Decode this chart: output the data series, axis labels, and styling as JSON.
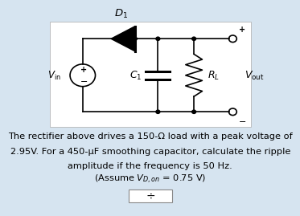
{
  "bg_color": "#d6e4f0",
  "box_bg": "#ffffff",
  "text_line1": "The rectifier above drives a 150-Ω load with a peak voltage of",
  "text_line2": "2.95V. For a 450-μF smoothing capacitor, calculate the ripple",
  "text_line3": "amplitude if the frequency is 50 Hz.",
  "text_assume": "(Assume $V_{D,on}$ = 0.75 V)",
  "font_size_main": 8.2,
  "font_size_assume": 8.2
}
